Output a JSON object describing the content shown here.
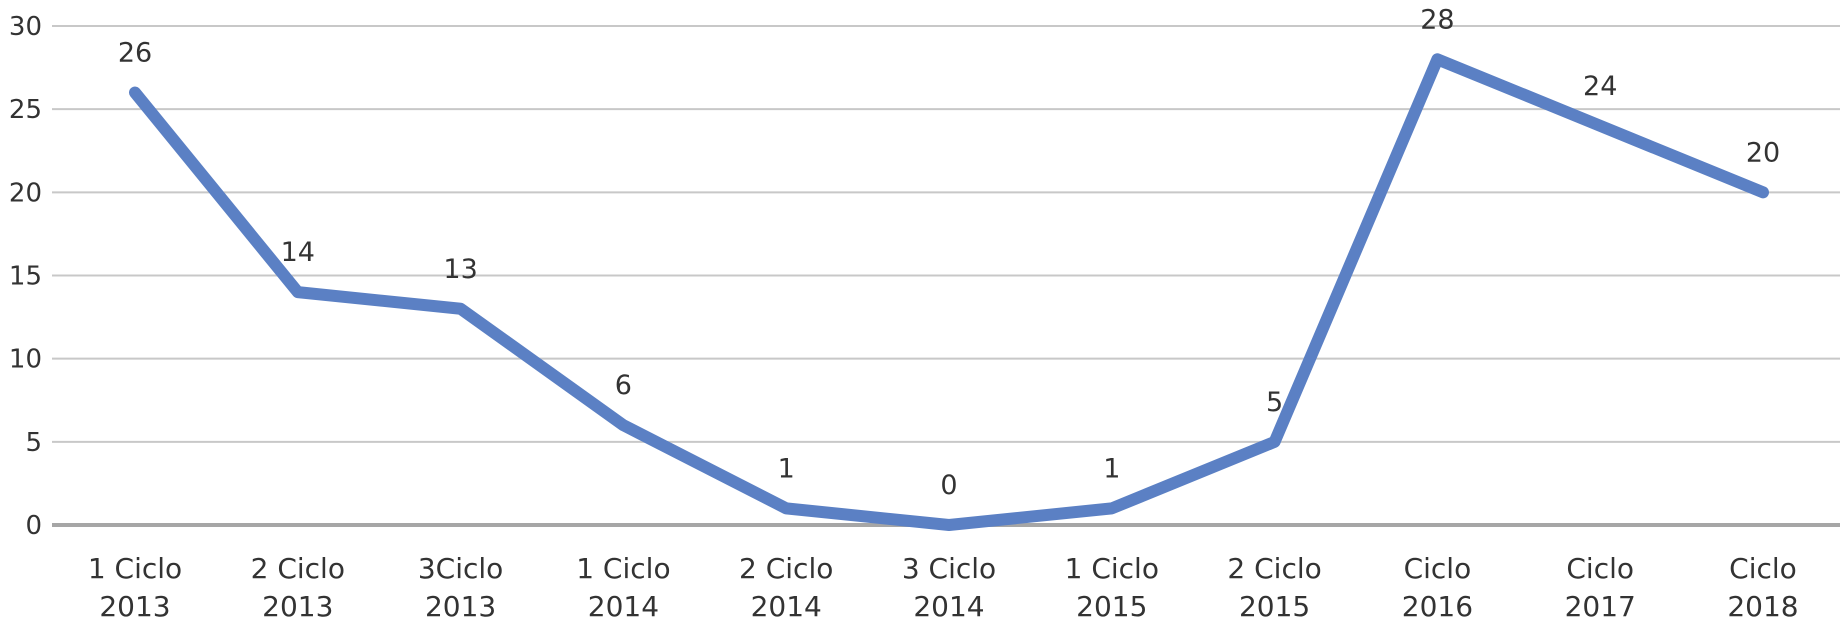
{
  "chart_data": {
    "type": "line",
    "title": "",
    "xlabel": "",
    "ylabel": "",
    "ylim": [
      0,
      30
    ],
    "yticks": [
      0,
      5,
      10,
      15,
      20,
      25,
      30
    ],
    "grid": true,
    "legend": "none",
    "categories": [
      [
        "1 Ciclo",
        "2013"
      ],
      [
        "2 Ciclo",
        "2013"
      ],
      [
        "3Ciclo",
        "2013"
      ],
      [
        "1 Ciclo",
        "2014"
      ],
      [
        "2 Ciclo",
        "2014"
      ],
      [
        "3 Ciclo",
        "2014"
      ],
      [
        "1 Ciclo",
        "2015"
      ],
      [
        "2 Ciclo",
        "2015"
      ],
      [
        "Ciclo",
        "2016"
      ],
      [
        "Ciclo",
        "2017"
      ],
      [
        "Ciclo",
        "2018"
      ]
    ],
    "series": [
      {
        "values": [
          26,
          14,
          13,
          6,
          1,
          0,
          1,
          5,
          28,
          24,
          20
        ],
        "color": "#5b80c4"
      }
    ],
    "data_labels": true
  }
}
